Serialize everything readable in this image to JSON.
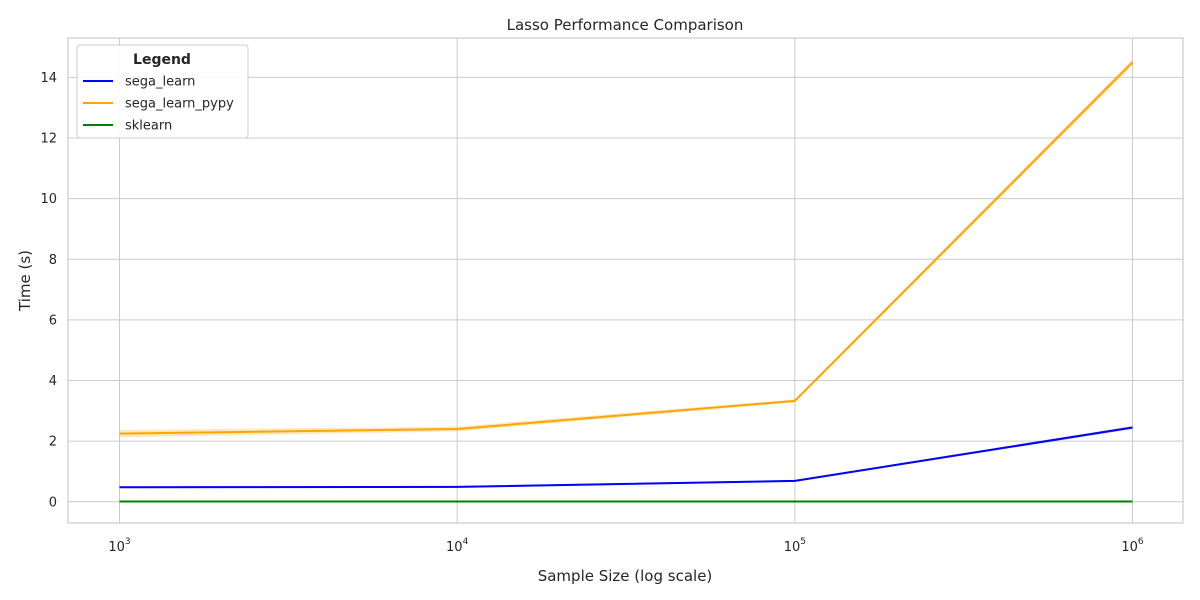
{
  "chart_data": {
    "type": "line",
    "title": "Lasso Performance Comparison",
    "xlabel": "Sample Size (log scale)",
    "ylabel": "Time (s)",
    "xscale": "log",
    "x": [
      1000,
      10000,
      100000,
      1000000
    ],
    "x_tick_labels": [
      {
        "base": "10",
        "exp": "3"
      },
      {
        "base": "10",
        "exp": "4"
      },
      {
        "base": "10",
        "exp": "5"
      },
      {
        "base": "10",
        "exp": "6"
      }
    ],
    "yticks": [
      0,
      2,
      4,
      6,
      8,
      10,
      12,
      14
    ],
    "ylim": [
      -0.7,
      15.3
    ],
    "grid": true,
    "legend": {
      "title": "Legend",
      "position": "top-left"
    },
    "series": [
      {
        "name": "sega_learn",
        "color": "#0000ff",
        "values": [
          0.48,
          0.49,
          0.69,
          2.45
        ],
        "band": [
          0.03,
          0.03,
          0.03,
          0.05
        ]
      },
      {
        "name": "sega_learn_pypy",
        "color": "#ffa500",
        "values": [
          2.25,
          2.4,
          3.33,
          14.5
        ],
        "band": [
          0.12,
          0.08,
          0.05,
          0.1
        ]
      },
      {
        "name": "sklearn",
        "color": "#008000",
        "values": [
          0.01,
          0.01,
          0.01,
          0.01
        ],
        "band": [
          0.005,
          0.005,
          0.005,
          0.005
        ]
      }
    ]
  }
}
